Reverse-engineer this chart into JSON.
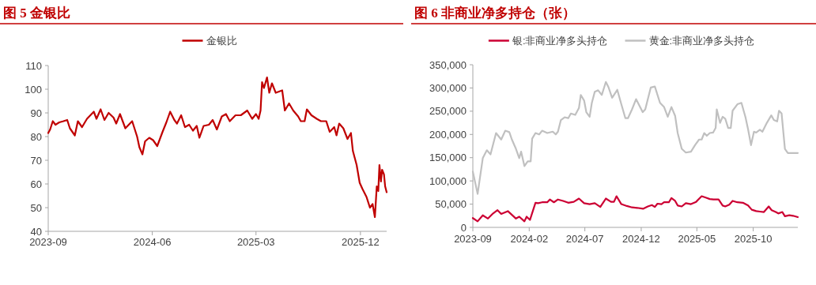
{
  "chart_data": [
    {
      "type": "line",
      "title": "图 5 金银比",
      "legend": "top",
      "xlim": [
        "2023-09-01",
        "2026-02-08"
      ],
      "xticks": [
        {
          "value": "2023-09-01",
          "label": "2023-09"
        },
        {
          "value": "2024-06-01",
          "label": "2024-06"
        },
        {
          "value": "2025-03-01",
          "label": "2025-03"
        },
        {
          "value": "2025-12-01",
          "label": "2025-12"
        }
      ],
      "ylim": [
        40,
        110
      ],
      "yticks": [
        40,
        50,
        60,
        70,
        80,
        90,
        100,
        110
      ],
      "series": [
        {
          "name": "金银比",
          "color": "#c00000",
          "x": [
            "2023-09-01",
            "2023-09-06",
            "2023-09-13",
            "2023-09-20",
            "2023-09-30",
            "2023-10-11",
            "2023-10-21",
            "2023-10-28",
            "2023-11-10",
            "2023-11-18",
            "2023-11-29",
            "2023-12-12",
            "2023-12-30",
            "2024-01-06",
            "2024-01-17",
            "2024-01-27",
            "2024-02-07",
            "2024-02-20",
            "2024-02-27",
            "2024-03-08",
            "2024-03-22",
            "2024-04-09",
            "2024-04-22",
            "2024-04-28",
            "2024-05-06",
            "2024-05-13",
            "2024-05-24",
            "2024-06-03",
            "2024-06-14",
            "2024-06-28",
            "2024-07-08",
            "2024-07-18",
            "2024-07-29",
            "2024-08-05",
            "2024-08-16",
            "2024-08-26",
            "2024-09-06",
            "2024-09-16",
            "2024-09-26",
            "2024-10-03",
            "2024-10-14",
            "2024-10-28",
            "2024-11-07",
            "2024-11-18",
            "2024-12-01",
            "2024-12-12",
            "2024-12-22",
            "2025-01-06",
            "2025-01-20",
            "2025-02-06",
            "2025-02-19",
            "2025-03-01",
            "2025-03-08",
            "2025-03-13",
            "2025-03-17",
            "2025-03-22",
            "2025-03-30",
            "2025-04-05",
            "2025-04-12",
            "2025-04-22",
            "2025-05-09",
            "2025-05-16",
            "2025-05-27",
            "2025-06-07",
            "2025-06-20",
            "2025-06-27",
            "2025-07-07",
            "2025-07-13",
            "2025-07-25",
            "2025-08-08",
            "2025-08-19",
            "2025-09-02",
            "2025-09-11",
            "2025-09-23",
            "2025-09-29",
            "2025-10-06",
            "2025-10-17",
            "2025-10-28",
            "2025-11-06",
            "2025-11-11",
            "2025-11-21",
            "2025-11-29",
            "2025-12-06",
            "2025-12-17",
            "2025-12-26",
            "2026-01-02",
            "2026-01-08",
            "2026-01-13",
            "2026-01-17",
            "2026-01-20",
            "2026-01-24",
            "2026-01-27",
            "2026-02-01",
            "2026-02-04",
            "2026-02-08"
          ],
          "values": [
            81.5,
            83,
            86.5,
            85,
            86,
            86.5,
            87,
            83.5,
            80.5,
            86.5,
            84,
            87.5,
            90.5,
            87.5,
            91.5,
            87,
            90,
            88,
            85.5,
            89.5,
            83.5,
            86.5,
            80,
            75.5,
            72.5,
            78,
            79.5,
            78.5,
            76,
            82,
            86,
            90.5,
            87,
            85.5,
            89,
            84,
            85,
            82.5,
            84.5,
            79.5,
            84.5,
            85,
            87,
            83,
            88.5,
            89.5,
            86.5,
            89,
            89,
            91,
            87.5,
            89.5,
            87.5,
            91,
            103,
            100.5,
            105,
            98.5,
            102.5,
            98.5,
            99.5,
            91,
            94,
            91,
            88.5,
            86.5,
            86.5,
            91.5,
            89,
            87.5,
            86.5,
            86.5,
            82,
            84,
            80.5,
            85.5,
            83.5,
            79,
            81.5,
            74,
            68,
            60.5,
            58,
            54.5,
            50,
            51.5,
            46,
            59,
            57,
            68,
            61,
            66,
            64,
            59,
            56.5
          ]
        }
      ]
    },
    {
      "type": "line",
      "title": "图 6 非商业净多持仓（张）",
      "legend": "top",
      "xlim": [
        "2023-09-01",
        "2026-01-30"
      ],
      "xticks": [
        {
          "value": "2023-09-01",
          "label": "2023-09"
        },
        {
          "value": "2024-02-01",
          "label": "2024-02"
        },
        {
          "value": "2024-07-01",
          "label": "2024-07"
        },
        {
          "value": "2024-12-01",
          "label": "2024-12"
        },
        {
          "value": "2025-05-01",
          "label": "2025-05"
        },
        {
          "value": "2025-10-01",
          "label": "2025-10"
        }
      ],
      "ylim": [
        0,
        350000
      ],
      "yticks": [
        0,
        {
          "value": 50000,
          "label": "50,000"
        },
        {
          "value": 100000,
          "label": "100,000"
        },
        {
          "value": 150000,
          "label": "150,000"
        },
        {
          "value": 200000,
          "label": "200,000"
        },
        {
          "value": 250000,
          "label": "250,000"
        },
        {
          "value": 300000,
          "label": "300,000"
        },
        {
          "value": 350000,
          "label": "350,000"
        }
      ],
      "series": [
        {
          "name": "银:非商业净多头持仓",
          "color": "#cc0033",
          "x": [
            "2023-09-01",
            "2023-09-14",
            "2023-09-28",
            "2023-10-12",
            "2023-10-26",
            "2023-11-07",
            "2023-11-17",
            "2023-12-05",
            "2023-12-16",
            "2023-12-27",
            "2024-01-05",
            "2024-01-19",
            "2024-01-25",
            "2024-02-03",
            "2024-02-18",
            "2024-02-25",
            "2024-03-07",
            "2024-03-21",
            "2024-03-28",
            "2024-04-08",
            "2024-04-19",
            "2024-05-03",
            "2024-05-17",
            "2024-06-01",
            "2024-06-15",
            "2024-06-29",
            "2024-07-14",
            "2024-07-28",
            "2024-08-12",
            "2024-08-27",
            "2024-09-10",
            "2024-09-18",
            "2024-09-25",
            "2024-10-08",
            "2024-10-23",
            "2024-11-06",
            "2024-11-20",
            "2024-12-06",
            "2024-12-19",
            "2024-12-30",
            "2025-01-07",
            "2025-01-14",
            "2025-01-25",
            "2025-02-01",
            "2025-02-14",
            "2025-02-21",
            "2025-03-03",
            "2025-03-10",
            "2025-03-21",
            "2025-04-01",
            "2025-04-15",
            "2025-04-29",
            "2025-05-14",
            "2025-05-25",
            "2025-06-05",
            "2025-06-15",
            "2025-06-29",
            "2025-07-10",
            "2025-07-17",
            "2025-07-28",
            "2025-08-06",
            "2025-08-19",
            "2025-09-03",
            "2025-09-17",
            "2025-09-27",
            "2025-10-09",
            "2025-10-19",
            "2025-10-30",
            "2025-11-12",
            "2025-11-20",
            "2025-12-01",
            "2025-12-08",
            "2025-12-19",
            "2025-12-26",
            "2026-01-07",
            "2026-01-17",
            "2026-01-30"
          ],
          "values": [
            20000,
            13000,
            26000,
            19000,
            30000,
            37000,
            29000,
            35000,
            27000,
            19000,
            23000,
            13000,
            23000,
            16000,
            53000,
            52000,
            54000,
            54000,
            60000,
            54000,
            60000,
            57000,
            53000,
            55000,
            62000,
            52000,
            50000,
            52000,
            44000,
            62000,
            55000,
            55000,
            67000,
            50000,
            46000,
            43000,
            42000,
            40000,
            45000,
            48000,
            44000,
            51000,
            50000,
            54000,
            54000,
            63000,
            57000,
            47000,
            45000,
            52000,
            50000,
            55000,
            67000,
            64000,
            61000,
            60000,
            60000,
            47000,
            45000,
            49000,
            57000,
            54000,
            53000,
            47000,
            38000,
            35000,
            34000,
            33000,
            45000,
            37000,
            33000,
            30000,
            33000,
            24000,
            26000,
            25000,
            22000
          ]
        },
        {
          "name": "黄金:非商业净多头持仓",
          "color": "#c0c0c0",
          "x": [
            "2023-09-01",
            "2023-09-14",
            "2023-09-28",
            "2023-10-09",
            "2023-10-19",
            "2023-11-03",
            "2023-11-17",
            "2023-11-28",
            "2023-12-09",
            "2023-12-16",
            "2023-12-27",
            "2024-01-05",
            "2024-01-10",
            "2024-01-19",
            "2024-01-28",
            "2024-02-05",
            "2024-02-09",
            "2024-02-18",
            "2024-02-28",
            "2024-03-07",
            "2024-03-21",
            "2024-04-05",
            "2024-04-13",
            "2024-04-19",
            "2024-04-27",
            "2024-05-07",
            "2024-05-17",
            "2024-05-24",
            "2024-06-05",
            "2024-06-15",
            "2024-06-20",
            "2024-06-29",
            "2024-07-05",
            "2024-07-14",
            "2024-07-20",
            "2024-07-28",
            "2024-08-06",
            "2024-08-16",
            "2024-08-27",
            "2024-09-03",
            "2024-09-13",
            "2024-09-27",
            "2024-10-08",
            "2024-10-19",
            "2024-10-26",
            "2024-11-06",
            "2024-11-17",
            "2024-12-05",
            "2024-12-12",
            "2024-12-27",
            "2025-01-07",
            "2025-01-21",
            "2025-02-01",
            "2025-02-11",
            "2025-02-21",
            "2025-03-03",
            "2025-03-10",
            "2025-03-21",
            "2025-04-01",
            "2025-04-15",
            "2025-04-26",
            "2025-05-07",
            "2025-05-14",
            "2025-05-21",
            "2025-05-28",
            "2025-06-05",
            "2025-06-14",
            "2025-06-21",
            "2025-06-24",
            "2025-07-03",
            "2025-07-10",
            "2025-07-17",
            "2025-07-25",
            "2025-08-01",
            "2025-08-06",
            "2025-08-19",
            "2025-08-30",
            "2025-09-10",
            "2025-09-17",
            "2025-09-25",
            "2025-10-03",
            "2025-10-09",
            "2025-10-19",
            "2025-10-26",
            "2025-11-07",
            "2025-11-19",
            "2025-11-26",
            "2025-12-05",
            "2025-12-10",
            "2025-12-17",
            "2025-12-26",
            "2026-01-03",
            "2026-01-30"
          ],
          "values": [
            120000,
            72000,
            149000,
            166000,
            157000,
            203000,
            189000,
            208000,
            205000,
            189000,
            169000,
            149000,
            163000,
            132000,
            142000,
            142000,
            191000,
            203000,
            200000,
            208000,
            203000,
            206000,
            200000,
            206000,
            231000,
            237000,
            235000,
            245000,
            242000,
            257000,
            285000,
            273000,
            248000,
            238000,
            268000,
            292000,
            295000,
            285000,
            313000,
            302000,
            279000,
            296000,
            265000,
            235000,
            235000,
            254000,
            276000,
            248000,
            254000,
            301000,
            303000,
            268000,
            259000,
            238000,
            259000,
            240000,
            203000,
            169000,
            161000,
            163000,
            177000,
            189000,
            189000,
            203000,
            197000,
            203000,
            204000,
            214000,
            254000,
            225000,
            238000,
            234000,
            214000,
            214000,
            251000,
            265000,
            268000,
            237000,
            211000,
            177000,
            206000,
            204000,
            210000,
            206000,
            225000,
            241000,
            231000,
            228000,
            251000,
            245000,
            169000,
            160000,
            160000
          ]
        }
      ]
    }
  ]
}
